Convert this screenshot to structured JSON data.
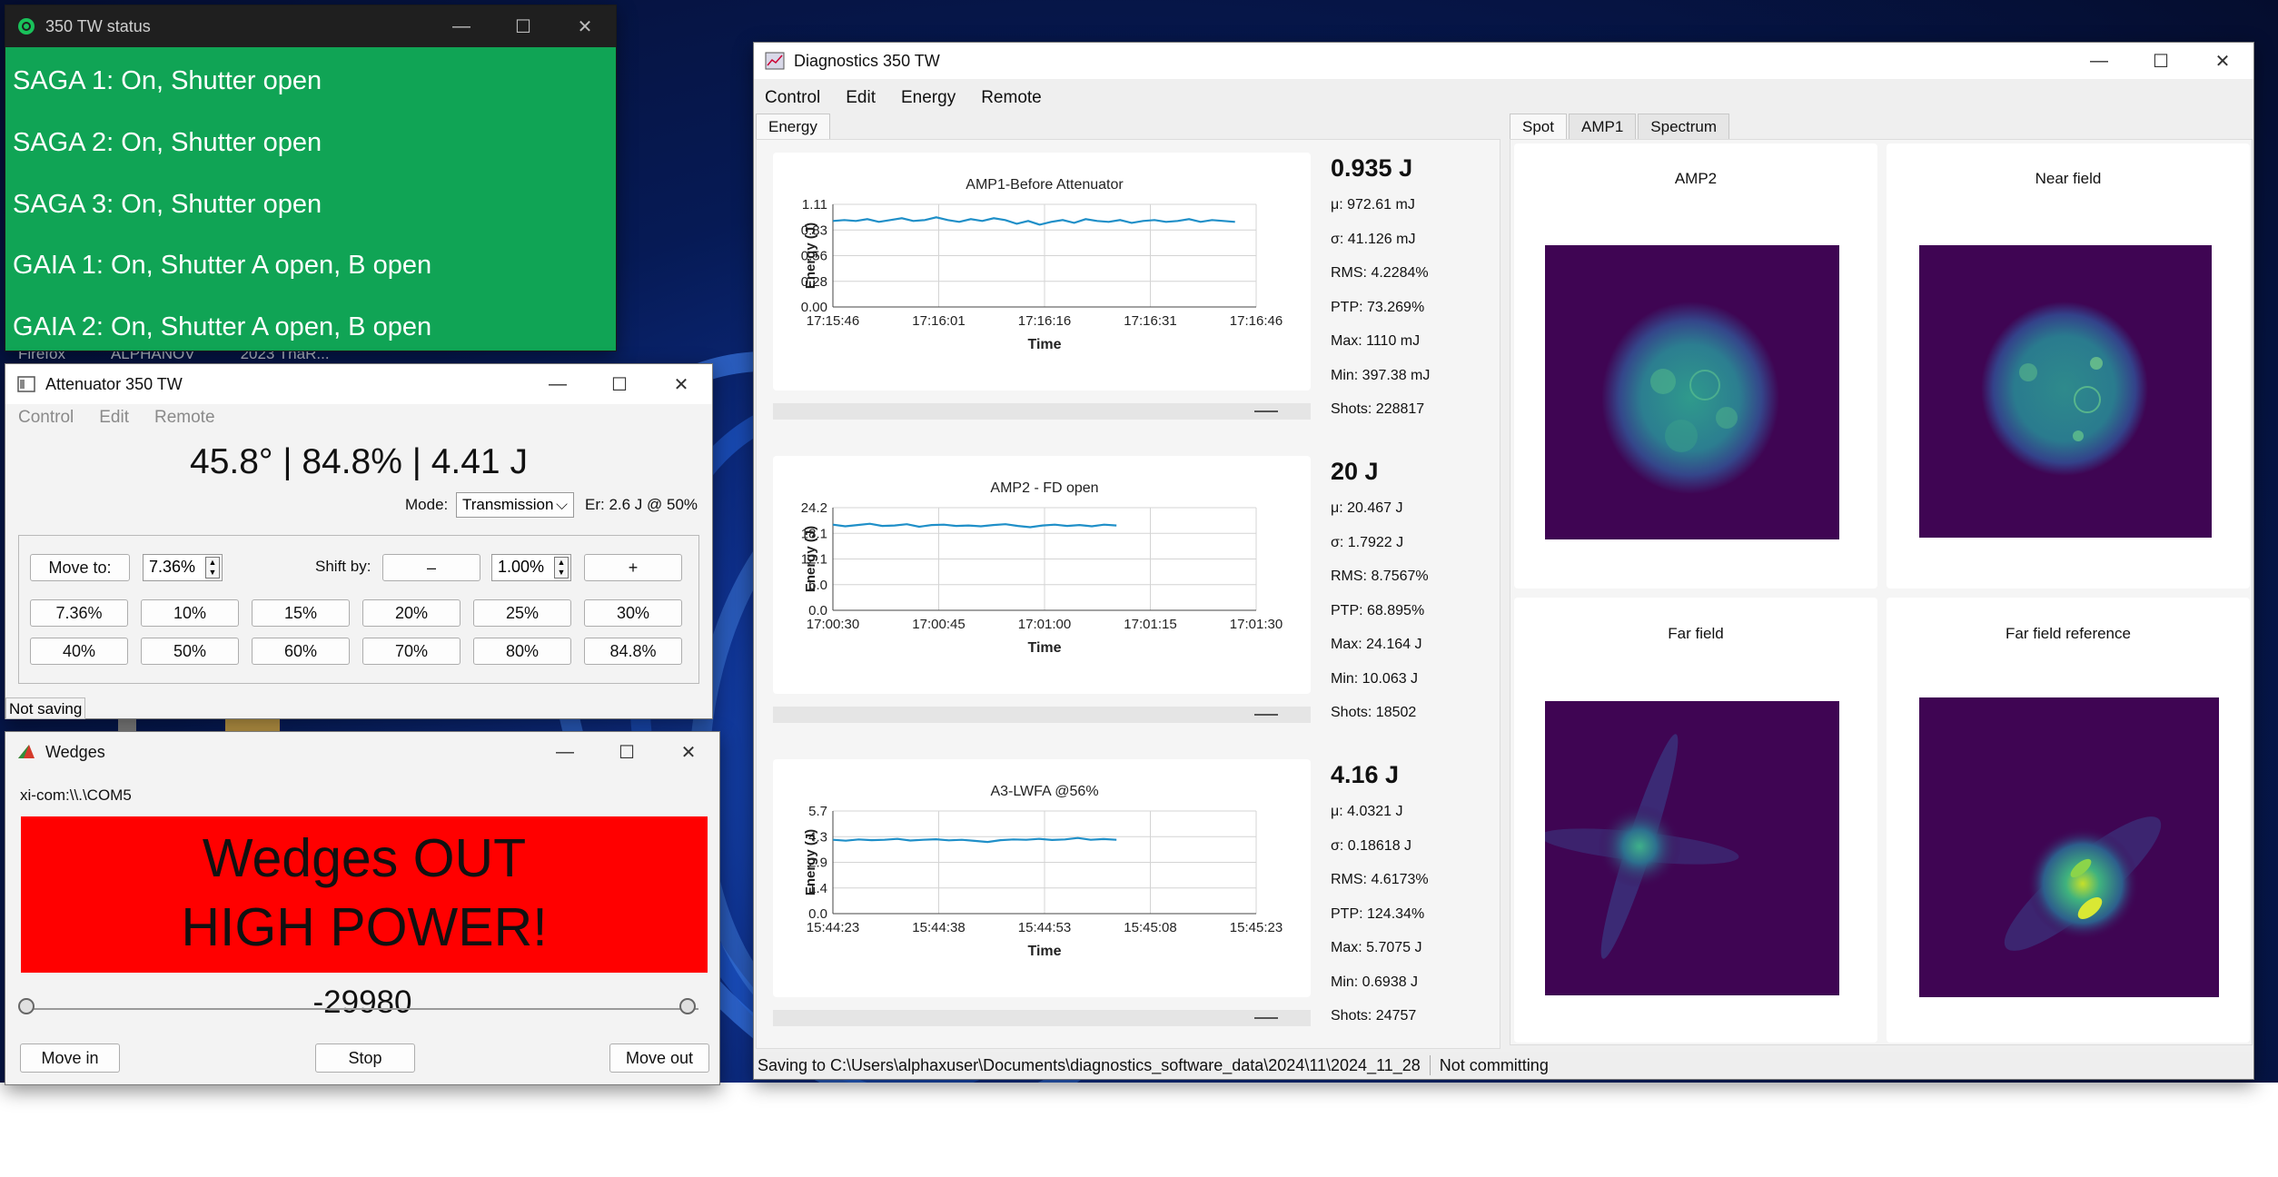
{
  "desktop": {
    "taskbar_labels": [
      "Firefox",
      "ALPHANOV",
      "2023 ThaR..."
    ]
  },
  "status_window": {
    "title": "350 TW status",
    "lines": [
      "SAGA 1: On, Shutter open",
      "SAGA 2: On, Shutter open",
      "SAGA 3: On, Shutter open",
      "GAIA 1: On, Shutter A open, B open",
      "GAIA 2: On, Shutter A open, B open"
    ],
    "background": "#10a455"
  },
  "attenuator": {
    "title": "Attenuator 350 TW",
    "menu": [
      "Control",
      "Edit",
      "Remote"
    ],
    "readout": "45.8° | 84.8% | 4.41 J",
    "mode_label": "Mode:",
    "mode_value": "Transmission",
    "er_text": "Er: 2.6 J @ 50%",
    "move_to_label": "Move to:",
    "move_to_value": "7.36%",
    "shift_by_label": "Shift by:",
    "shift_minus": "–",
    "shift_value": "1.00%",
    "shift_plus": "+",
    "presets_row1": [
      "7.36%",
      "10%",
      "15%",
      "20%",
      "25%",
      "30%"
    ],
    "presets_row2": [
      "40%",
      "50%",
      "60%",
      "70%",
      "80%",
      "84.8%"
    ],
    "status": "Not saving"
  },
  "wedges": {
    "title": "Wedges",
    "port": "xi-com:\\\\.\\COM5",
    "banner_line1": "Wedges OUT",
    "banner_line2": "HIGH POWER!",
    "banner_color": "#ff0000",
    "position": "-29980",
    "move_in": "Move in",
    "stop": "Stop",
    "move_out": "Move out"
  },
  "diagnostics": {
    "title": "Diagnostics 350 TW",
    "menu": [
      "Control",
      "Edit",
      "Energy",
      "Remote"
    ],
    "left_tab": "Energy",
    "right_tabs": [
      "Spot",
      "AMP1",
      "Spectrum"
    ],
    "images": {
      "amp2": "AMP2",
      "near_field": "Near field",
      "far_field": "Far field",
      "far_field_reference": "Far field reference"
    },
    "stats": [
      {
        "energy": "0.935 J",
        "mu": "μ: 972.61 mJ",
        "sigma": "σ: 41.126 mJ",
        "rms": "RMS: 4.2284%",
        "ptp": "PTP: 73.269%",
        "max": "Max: 1110 mJ",
        "min": "Min: 397.38 mJ",
        "shots": "Shots: 228817"
      },
      {
        "energy": "20 J",
        "mu": "μ: 20.467 J",
        "sigma": "σ: 1.7922 J",
        "rms": "RMS: 8.7567%",
        "ptp": "PTP: 68.895%",
        "max": "Max: 24.164 J",
        "min": "Min: 10.063 J",
        "shots": "Shots: 18502"
      },
      {
        "energy": "4.16 J",
        "mu": "μ: 4.0321 J",
        "sigma": "σ: 0.18618 J",
        "rms": "RMS: 4.6173%",
        "ptp": "PTP: 124.34%",
        "max": "Max: 5.7075 J",
        "min": "Min: 0.6938 J",
        "shots": "Shots: 24757"
      }
    ],
    "statusbar_saving": "Saving to C:\\Users\\alphaxuser\\Documents\\diagnostics_software_data\\2024\\11\\2024_11_28",
    "statusbar_commit": "Not committing",
    "line_color": "#1f8fc8"
  },
  "chart_data": [
    {
      "type": "line",
      "title": "AMP1-Before Attenuator",
      "xlabel": "Time",
      "ylabel": "Energy (J)",
      "yticks": [
        "1.11",
        "0.83",
        "0.56",
        "0.28",
        "0.00"
      ],
      "xticks": [
        "17:15:46",
        "17:16:01",
        "17:16:16",
        "17:16:31",
        "17:16:46"
      ],
      "ylim": [
        0,
        1.11
      ],
      "x_end_fraction": 0.95,
      "series": [
        {
          "values": [
            0.93,
            0.94,
            0.93,
            0.95,
            0.92,
            0.94,
            0.96,
            0.93,
            0.94,
            0.97,
            0.94,
            0.92,
            0.95,
            0.93,
            0.96,
            0.94,
            0.9,
            0.93,
            0.89,
            0.92,
            0.94,
            0.91,
            0.95,
            0.93,
            0.92,
            0.94,
            0.91,
            0.93,
            0.94,
            0.92,
            0.93,
            0.95,
            0.92,
            0.94,
            0.93,
            0.92
          ]
        }
      ]
    },
    {
      "type": "line",
      "title": "AMP2 - FD open",
      "xlabel": "Time",
      "ylabel": "Energy (J)",
      "yticks": [
        "24.2",
        "18.1",
        "12.1",
        "6.0",
        "0.0"
      ],
      "xticks": [
        "17:00:30",
        "17:00:45",
        "17:01:00",
        "17:01:15",
        "17:01:30"
      ],
      "ylim": [
        0,
        24.2
      ],
      "x_end_fraction": 0.67,
      "series": [
        {
          "values": [
            20.2,
            19.8,
            20.1,
            20.4,
            19.9,
            20.0,
            20.3,
            19.7,
            20.1,
            20.2,
            19.9,
            20.0,
            19.8,
            20.1,
            20.3,
            19.9,
            19.6,
            20.0,
            20.2,
            19.9,
            20.1,
            19.8,
            20.2,
            20.0
          ]
        }
      ]
    },
    {
      "type": "line",
      "title": "A3-LWFA @56%",
      "xlabel": "Time",
      "ylabel": "Energy (J)",
      "yticks": [
        "5.7",
        "4.3",
        "2.9",
        "1.4",
        "0.0"
      ],
      "xticks": [
        "15:44:23",
        "15:44:38",
        "15:44:53",
        "15:45:08",
        "15:45:23"
      ],
      "ylim": [
        0,
        5.7
      ],
      "x_end_fraction": 0.67,
      "series": [
        {
          "values": [
            4.1,
            4.05,
            4.12,
            4.08,
            4.1,
            4.15,
            4.06,
            4.1,
            4.13,
            4.07,
            4.1,
            4.04,
            3.98,
            4.08,
            4.12,
            4.1,
            4.15,
            4.09,
            4.12,
            4.2,
            4.1,
            4.14,
            4.1
          ]
        }
      ]
    }
  ]
}
